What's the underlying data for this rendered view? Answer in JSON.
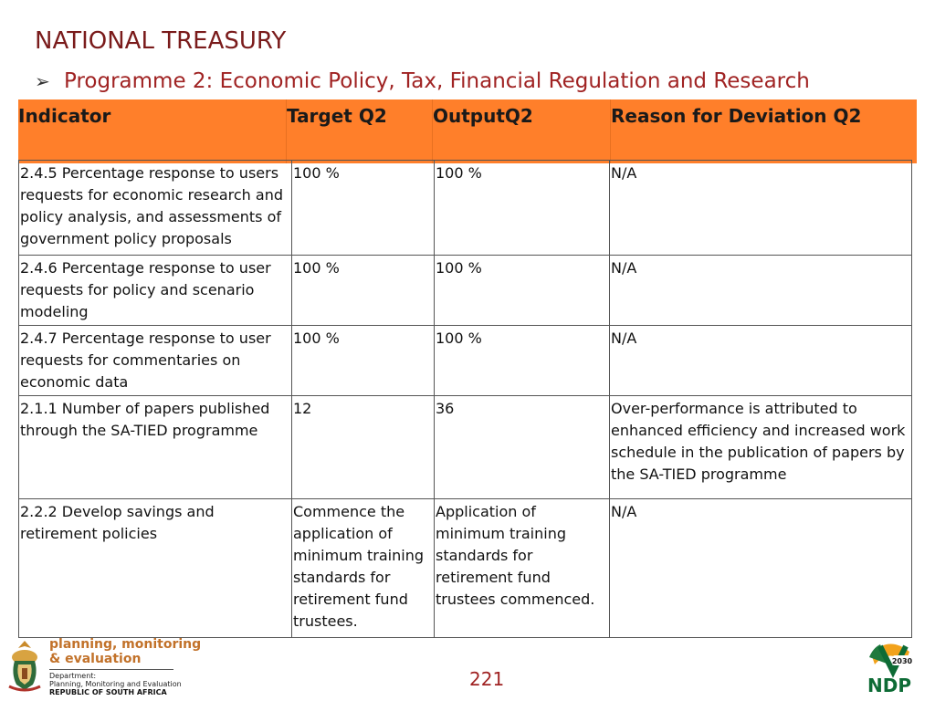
{
  "header": {
    "title": "NATIONAL TREASURY",
    "programme": "Programme 2: Economic Policy, Tax, Financial Regulation and Research"
  },
  "table": {
    "columns": [
      "Indicator",
      "Target Q2",
      "OutputQ2",
      "Reason for Deviation Q2"
    ],
    "rows": [
      [
        "2.4.5 Percentage response to users requests for economic research and policy analysis, and assessments of government policy proposals",
        "100 %",
        "100 %",
        "N/A"
      ],
      [
        "2.4.6 Percentage response to user requests for policy and scenario modeling",
        "100 %",
        "100 %",
        "N/A"
      ],
      [
        "2.4.7 Percentage response to user requests for commentaries on economic data",
        "100 %",
        "100 %",
        "N/A"
      ],
      [
        "2.1.1 Number of papers published through the SA-TIED programme",
        "12",
        "36",
        "Over-performance is attributed to enhanced efficiency and increased work schedule in the publication of papers by the SA-TIED programme"
      ],
      [
        "2.2.2 Develop savings and retirement policies",
        "Commence the application of minimum training standards for retirement fund trustees.",
        "Application of minimum training standards for retirement fund trustees commenced.",
        "N/A"
      ]
    ]
  },
  "footer": {
    "logo_line1": "planning, monitoring",
    "logo_line2": "& evaluation",
    "dept_line1": "Department:",
    "dept_line2": "Planning, Monitoring and Evaluation",
    "dept_line3": "REPUBLIC OF SOUTH AFRICA",
    "page_number": "221",
    "ndp_year": "2030",
    "ndp_label": "NDP"
  },
  "colors": {
    "header_orange": "#ff7f2a",
    "title_red": "#7a1b1b",
    "accent_red": "#a02323"
  }
}
